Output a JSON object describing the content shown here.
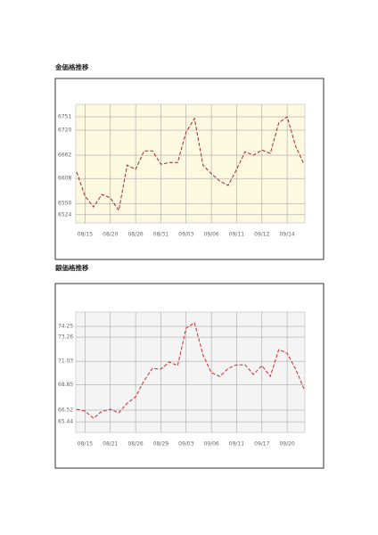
{
  "chart_data": [
    {
      "type": "line",
      "title": "金価格推移",
      "color": "#9b2a2a",
      "background": "#fdf8e0",
      "grid": true,
      "categories": [
        null,
        "08/15",
        null,
        null,
        "08/20",
        null,
        null,
        "08/26",
        null,
        null,
        "08/31",
        null,
        null,
        "09/03",
        null,
        null,
        "09/06",
        null,
        null,
        "09/11",
        null,
        null,
        "09/12",
        null,
        null,
        "09/14",
        null,
        null
      ],
      "values": [
        6623,
        6567,
        6542,
        6571,
        6563,
        6534,
        6639,
        6629,
        6672,
        6672,
        6641,
        6645,
        6645,
        6716,
        6747,
        6639,
        6619,
        6602,
        6592,
        6629,
        6670,
        6662,
        6674,
        6666,
        6737,
        6751,
        6683,
        6641
      ],
      "ylim": [
        6505,
        6780
      ],
      "yticks": [
        6751,
        6720,
        6662,
        6608,
        6550,
        6524
      ]
    },
    {
      "type": "line",
      "title": "銀価格推移",
      "color": "#cc2b2b",
      "background": "#f4f4f4",
      "grid": true,
      "categories": [
        null,
        "08/15",
        null,
        null,
        "08/21",
        null,
        null,
        "08/26",
        null,
        null,
        "08/29",
        null,
        null,
        "09/03",
        null,
        null,
        "09/06",
        null,
        null,
        "09/11",
        null,
        null,
        "09/17",
        null,
        null,
        "09/20",
        null,
        null
      ],
      "values": [
        66.6,
        66.43,
        65.77,
        66.43,
        66.6,
        66.27,
        67.17,
        67.75,
        69.23,
        70.38,
        70.3,
        70.96,
        70.63,
        74.09,
        74.58,
        71.62,
        69.97,
        69.64,
        70.38,
        70.71,
        70.71,
        69.81,
        70.63,
        69.64,
        72.11,
        71.78,
        70.3,
        68.49
      ],
      "ylim": [
        64.46,
        75.57
      ],
      "yticks": [
        74.25,
        73.26,
        71.03,
        68.85,
        66.52,
        65.44
      ]
    }
  ]
}
